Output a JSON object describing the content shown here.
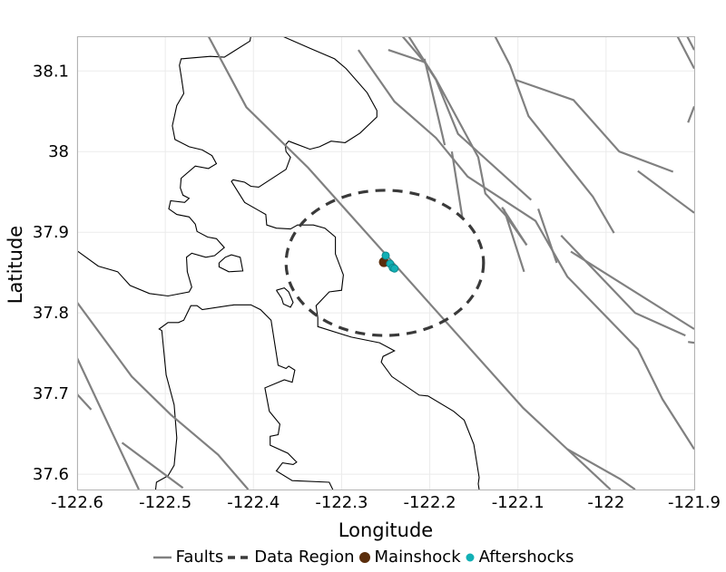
{
  "chart_data": {
    "type": "map",
    "xlabel": "Longitude",
    "ylabel": "Latitude",
    "xlim": [
      -122.6,
      -121.9
    ],
    "ylim": [
      37.581,
      38.143
    ],
    "grid": true,
    "legend_position": "bottom",
    "x_ticks": [
      -122.6,
      -122.5,
      -122.4,
      -122.3,
      -122.2,
      -122.1,
      -122.0,
      -121.9
    ],
    "x_tick_labels": [
      "-122.6",
      "-122.5",
      "-122.4",
      "-122.3",
      "-122.2",
      "-122.1",
      "-122",
      "-121.9"
    ],
    "y_ticks": [
      37.6,
      37.7,
      37.8,
      37.9,
      38.0,
      38.1
    ],
    "y_tick_labels": [
      "37.6",
      "37.7",
      "37.8",
      "37.9",
      "38",
      "38.1"
    ],
    "legend": [
      {
        "label": "Faults",
        "kind": "line",
        "color": "#808080"
      },
      {
        "label": "Data Region",
        "kind": "dashed",
        "color": "#3a3a3a"
      },
      {
        "label": "Mainshock",
        "kind": "point",
        "color": "#5a2d0c"
      },
      {
        "label": "Aftershocks",
        "kind": "point",
        "color": "#12b0b5"
      }
    ],
    "colors": {
      "fault": "#808080",
      "coast": "#000000",
      "region": "#3a3a3a",
      "mainshock": "#5a2d0c",
      "aftershock": "#12b0b5",
      "grid": "#ebebeb"
    },
    "data_region": {
      "center": [
        -122.251,
        37.862
      ],
      "semi_axis_lon": 0.112,
      "semi_axis_lat": 0.09
    },
    "mainshock": [
      {
        "lon": -122.252,
        "lat": 37.863
      }
    ],
    "aftershocks": [
      {
        "lon": -122.25,
        "lat": 37.871
      },
      {
        "lon": -122.245,
        "lat": 37.861
      },
      {
        "lon": -122.242,
        "lat": 37.856
      },
      {
        "lon": -122.24,
        "lat": 37.855
      }
    ],
    "faults": [
      [
        [
          -122.451,
          38.143
        ],
        [
          -122.408,
          38.055
        ],
        [
          -122.338,
          37.98
        ],
        [
          -122.094,
          37.682
        ],
        [
          -122.044,
          37.631
        ],
        [
          -121.995,
          37.581
        ]
      ],
      [
        [
          -122.044,
          37.631
        ],
        [
          -121.984,
          37.594
        ],
        [
          -121.967,
          37.581
        ]
      ],
      [
        [
          -122.6,
          37.813
        ],
        [
          -122.538,
          37.721
        ],
        [
          -122.494,
          37.674
        ],
        [
          -122.44,
          37.624
        ],
        [
          -122.406,
          37.581
        ]
      ],
      [
        [
          -122.6,
          37.744
        ],
        [
          -122.53,
          37.581
        ]
      ],
      [
        [
          -122.6,
          37.699
        ],
        [
          -122.584,
          37.68
        ]
      ],
      [
        [
          -122.549,
          37.639
        ],
        [
          -122.48,
          37.583
        ]
      ],
      [
        [
          -122.281,
          38.126
        ],
        [
          -122.24,
          38.062
        ],
        [
          -122.193,
          38.017
        ],
        [
          -122.157,
          37.969
        ],
        [
          -122.08,
          37.914
        ],
        [
          -122.044,
          37.845
        ],
        [
          -121.964,
          37.755
        ],
        [
          -121.936,
          37.693
        ],
        [
          -121.9,
          37.631
        ]
      ],
      [
        [
          -122.224,
          38.143
        ],
        [
          -122.193,
          38.09
        ],
        [
          -122.145,
          37.993
        ],
        [
          -122.137,
          37.948
        ],
        [
          -122.114,
          37.921
        ],
        [
          -122.09,
          37.884
        ]
      ],
      [
        [
          -122.231,
          38.143
        ],
        [
          -122.206,
          38.111
        ],
        [
          -122.193,
          38.089
        ],
        [
          -122.168,
          38.022
        ],
        [
          -122.085,
          37.94
        ]
      ],
      [
        [
          -122.247,
          38.126
        ],
        [
          -122.206,
          38.111
        ]
      ],
      [
        [
          -122.206,
          38.115
        ],
        [
          -122.183,
          38.008
        ]
      ],
      [
        [
          -122.175,
          38.0
        ],
        [
          -122.163,
          37.918
        ]
      ],
      [
        [
          -122.116,
          37.929
        ],
        [
          -122.093,
          37.851
        ]
      ],
      [
        [
          -122.118,
          37.931
        ],
        [
          -122.09,
          37.884
        ]
      ],
      [
        [
          -122.077,
          37.929
        ],
        [
          -122.056,
          37.862
        ]
      ],
      [
        [
          -122.051,
          37.896
        ],
        [
          -121.967,
          37.8
        ],
        [
          -121.91,
          37.772
        ]
      ],
      [
        [
          -122.04,
          37.876
        ],
        [
          -121.9,
          37.78
        ]
      ],
      [
        [
          -121.907,
          37.764
        ],
        [
          -121.9,
          37.763
        ]
      ],
      [
        [
          -122.126,
          38.143
        ],
        [
          -122.109,
          38.107
        ],
        [
          -122.103,
          38.089
        ],
        [
          -122.088,
          38.044
        ],
        [
          -122.015,
          37.944
        ],
        [
          -121.991,
          37.899
        ]
      ],
      [
        [
          -122.103,
          38.089
        ],
        [
          -122.037,
          38.064
        ],
        [
          -121.985,
          38.0
        ],
        [
          -121.924,
          37.975
        ]
      ],
      [
        [
          -121.964,
          37.976
        ],
        [
          -121.9,
          37.924
        ]
      ],
      [
        [
          -121.919,
          38.143
        ],
        [
          -121.9,
          38.103
        ]
      ],
      [
        [
          -121.908,
          38.143
        ],
        [
          -121.9,
          38.126
        ]
      ],
      [
        [
          -121.907,
          38.036
        ],
        [
          -121.9,
          38.056
        ]
      ]
    ],
    "coastlines": [
      [
        [
          -122.403,
          38.143
        ],
        [
          -122.404,
          38.137
        ],
        [
          -122.433,
          38.117
        ],
        [
          -122.449,
          38.118
        ],
        [
          -122.482,
          38.115
        ],
        [
          -122.484,
          38.107
        ],
        [
          -122.482,
          38.094
        ],
        [
          -122.479,
          38.072
        ],
        [
          -122.487,
          38.057
        ],
        [
          -122.492,
          38.032
        ],
        [
          -122.489,
          38.015
        ],
        [
          -122.473,
          38.006
        ],
        [
          -122.458,
          38.002
        ],
        [
          -122.447,
          37.995
        ],
        [
          -122.442,
          37.985
        ],
        [
          -122.451,
          37.979
        ],
        [
          -122.466,
          37.982
        ],
        [
          -122.482,
          37.967
        ],
        [
          -122.483,
          37.955
        ],
        [
          -122.48,
          37.946
        ],
        [
          -122.473,
          37.942
        ],
        [
          -122.478,
          37.937
        ],
        [
          -122.494,
          37.939
        ],
        [
          -122.496,
          37.929
        ],
        [
          -122.487,
          37.922
        ],
        [
          -122.473,
          37.919
        ],
        [
          -122.466,
          37.91
        ],
        [
          -122.464,
          37.901
        ],
        [
          -122.452,
          37.894
        ],
        [
          -122.442,
          37.892
        ],
        [
          -122.433,
          37.881
        ],
        [
          -122.444,
          37.871
        ],
        [
          -122.454,
          37.869
        ],
        [
          -122.47,
          37.874
        ],
        [
          -122.476,
          37.869
        ],
        [
          -122.475,
          37.851
        ],
        [
          -122.47,
          37.832
        ],
        [
          -122.473,
          37.826
        ],
        [
          -122.497,
          37.821
        ],
        [
          -122.518,
          37.824
        ],
        [
          -122.54,
          37.834
        ],
        [
          -122.554,
          37.851
        ],
        [
          -122.576,
          37.858
        ],
        [
          -122.6,
          37.877
        ]
      ],
      [
        [
          -122.367,
          38.143
        ],
        [
          -122.336,
          38.128
        ],
        [
          -122.308,
          38.115
        ],
        [
          -122.295,
          38.103
        ],
        [
          -122.271,
          38.073
        ],
        [
          -122.26,
          38.051
        ],
        [
          -122.26,
          38.043
        ],
        [
          -122.279,
          38.023
        ],
        [
          -122.296,
          38.011
        ],
        [
          -122.312,
          38.013
        ],
        [
          -122.325,
          38.006
        ],
        [
          -122.336,
          38.003
        ],
        [
          -122.353,
          38.01
        ],
        [
          -122.36,
          38.013
        ],
        [
          -122.364,
          38.008
        ],
        [
          -122.363,
          38.0
        ],
        [
          -122.358,
          37.993
        ],
        [
          -122.363,
          37.978
        ],
        [
          -122.394,
          37.956
        ],
        [
          -122.403,
          37.957
        ],
        [
          -122.41,
          37.962
        ],
        [
          -122.423,
          37.965
        ],
        [
          -122.425,
          37.963
        ],
        [
          -122.41,
          37.937
        ],
        [
          -122.394,
          37.927
        ],
        [
          -122.386,
          37.922
        ],
        [
          -122.385,
          37.909
        ],
        [
          -122.374,
          37.905
        ],
        [
          -122.358,
          37.904
        ],
        [
          -122.35,
          37.909
        ],
        [
          -122.332,
          37.909
        ],
        [
          -122.319,
          37.905
        ],
        [
          -122.307,
          37.894
        ],
        [
          -122.307,
          37.873
        ],
        [
          -122.298,
          37.847
        ],
        [
          -122.3,
          37.828
        ],
        [
          -122.314,
          37.826
        ],
        [
          -122.329,
          37.809
        ],
        [
          -122.327,
          37.794
        ],
        [
          -122.327,
          37.783
        ],
        [
          -122.289,
          37.77
        ],
        [
          -122.257,
          37.763
        ],
        [
          -122.24,
          37.753
        ],
        [
          -122.253,
          37.746
        ],
        [
          -122.255,
          37.739
        ],
        [
          -122.243,
          37.721
        ],
        [
          -122.212,
          37.698
        ],
        [
          -122.202,
          37.697
        ],
        [
          -122.173,
          37.678
        ],
        [
          -122.161,
          37.667
        ],
        [
          -122.15,
          37.637
        ],
        [
          -122.144,
          37.596
        ],
        [
          -122.145,
          37.588
        ],
        [
          -122.144,
          37.581
        ]
      ],
      [
        [
          -122.511,
          37.581
        ],
        [
          -122.51,
          37.59
        ],
        [
          -122.497,
          37.598
        ],
        [
          -122.49,
          37.611
        ],
        [
          -122.487,
          37.645
        ],
        [
          -122.49,
          37.686
        ],
        [
          -122.499,
          37.723
        ],
        [
          -122.504,
          37.778
        ],
        [
          -122.507,
          37.78
        ],
        [
          -122.497,
          37.788
        ],
        [
          -122.485,
          37.788
        ],
        [
          -122.479,
          37.791
        ],
        [
          -122.471,
          37.809
        ],
        [
          -122.464,
          37.809
        ],
        [
          -122.458,
          37.804
        ],
        [
          -122.422,
          37.81
        ],
        [
          -122.403,
          37.81
        ],
        [
          -122.392,
          37.804
        ],
        [
          -122.38,
          37.791
        ],
        [
          -122.372,
          37.735
        ],
        [
          -122.363,
          37.731
        ],
        [
          -122.36,
          37.734
        ],
        [
          -122.353,
          37.729
        ],
        [
          -122.356,
          37.714
        ],
        [
          -122.365,
          37.717
        ],
        [
          -122.387,
          37.707
        ],
        [
          -122.382,
          37.678
        ],
        [
          -122.37,
          37.662
        ],
        [
          -122.372,
          37.649
        ],
        [
          -122.381,
          37.647
        ],
        [
          -122.381,
          37.636
        ],
        [
          -122.361,
          37.626
        ],
        [
          -122.351,
          37.615
        ],
        [
          -122.355,
          37.612
        ],
        [
          -122.367,
          37.614
        ],
        [
          -122.374,
          37.604
        ],
        [
          -122.356,
          37.592
        ],
        [
          -122.314,
          37.59
        ],
        [
          -122.31,
          37.581
        ]
      ],
      [
        [
          -122.439,
          37.862
        ],
        [
          -122.432,
          37.869
        ],
        [
          -122.425,
          37.872
        ],
        [
          -122.415,
          37.869
        ],
        [
          -122.412,
          37.852
        ],
        [
          -122.428,
          37.851
        ],
        [
          -122.439,
          37.857
        ],
        [
          -122.439,
          37.862
        ]
      ],
      [
        [
          -122.374,
          37.828
        ],
        [
          -122.365,
          37.831
        ],
        [
          -122.36,
          37.826
        ],
        [
          -122.355,
          37.813
        ],
        [
          -122.358,
          37.807
        ],
        [
          -122.366,
          37.811
        ],
        [
          -122.368,
          37.818
        ],
        [
          -122.374,
          37.828
        ]
      ]
    ]
  }
}
